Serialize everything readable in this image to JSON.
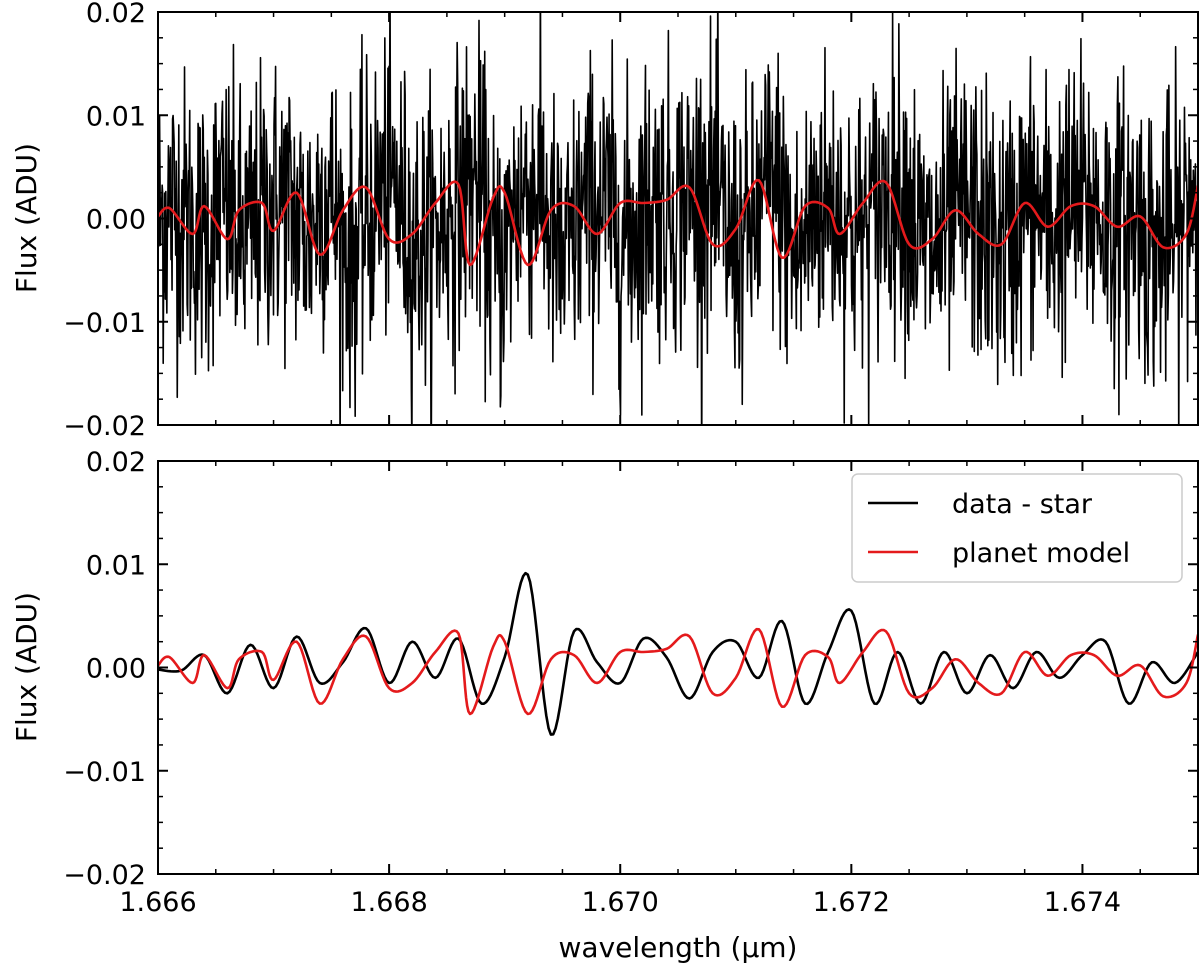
{
  "figure": {
    "xlabel": "wavelength (μm)",
    "background": "#ffffff"
  },
  "chart_data": [
    {
      "type": "line",
      "panel": "top",
      "xlabel": "",
      "ylabel": "Flux (ADU)",
      "xlim": [
        1.666,
        1.675
      ],
      "ylim": [
        -0.02,
        0.02
      ],
      "xticks": [
        1.666,
        1.668,
        1.67,
        1.672,
        1.674
      ],
      "yticks": [
        -0.02,
        -0.01,
        0.0,
        0.01,
        0.02
      ],
      "yticklabels": [
        "−0.02",
        "−0.01",
        "0.00",
        "0.01",
        "0.02"
      ],
      "xticks_labeled": false,
      "legend": null,
      "series": [
        {
          "color": "#000000",
          "description": "noisy data spectrum, approx. 2000 samples, scatter about 0 with std ~0.007 ADU",
          "noise_std": 0.007,
          "n_points": 2000
        },
        {
          "color": "#e41a1c",
          "x": [
            1.666,
            1.6661,
            1.6663,
            1.6664,
            1.6666,
            1.6667,
            1.6669,
            1.667,
            1.6672,
            1.6674,
            1.6676,
            1.6678,
            1.668,
            1.6682,
            1.6684,
            1.6686,
            1.6687,
            1.6689,
            1.669,
            1.6692,
            1.6694,
            1.6696,
            1.6698,
            1.67,
            1.6702,
            1.6704,
            1.6706,
            1.6708,
            1.671,
            1.6712,
            1.6714,
            1.6716,
            1.6718,
            1.6719,
            1.6721,
            1.6723,
            1.6725,
            1.6727,
            1.6729,
            1.6731,
            1.6733,
            1.6735,
            1.6737,
            1.6739,
            1.6741,
            1.6743,
            1.6745,
            1.6747,
            1.6749,
            1.675
          ],
          "y": [
            0.0002,
            0.001,
            -0.0015,
            0.0012,
            -0.002,
            0.0008,
            0.0015,
            -0.0012,
            0.0025,
            -0.0035,
            0.0008,
            0.003,
            -0.002,
            -0.0015,
            0.0015,
            0.0033,
            -0.0045,
            0.002,
            0.0025,
            -0.0045,
            0.0008,
            0.0012,
            -0.0015,
            0.0015,
            0.0015,
            0.0018,
            0.003,
            -0.0025,
            -0.001,
            0.0037,
            -0.0038,
            0.0012,
            0.001,
            -0.0015,
            0.0015,
            0.0035,
            -0.0025,
            -0.002,
            0.0008,
            -0.0015,
            -0.0025,
            0.0015,
            -0.0008,
            0.0012,
            0.0012,
            -0.0008,
            0.0002,
            -0.0028,
            -0.0015,
            0.0032
          ]
        }
      ]
    },
    {
      "type": "line",
      "panel": "bottom",
      "xlabel": "wavelength (μm)",
      "ylabel": "Flux (ADU)",
      "xlim": [
        1.666,
        1.675
      ],
      "ylim": [
        -0.02,
        0.02
      ],
      "xticks": [
        1.666,
        1.668,
        1.67,
        1.672,
        1.674
      ],
      "xticklabels": [
        "1.666",
        "1.668",
        "1.670",
        "1.672",
        "1.674"
      ],
      "yticks": [
        -0.02,
        -0.01,
        0.0,
        0.01,
        0.02
      ],
      "yticklabels": [
        "−0.02",
        "−0.01",
        "0.00",
        "0.01",
        "0.02"
      ],
      "legend": "top-right",
      "series": [
        {
          "name": "data - star",
          "color": "#000000",
          "x": [
            1.666,
            1.6662,
            1.6664,
            1.6666,
            1.6668,
            1.667,
            1.6672,
            1.6674,
            1.6676,
            1.6678,
            1.668,
            1.6682,
            1.6684,
            1.6686,
            1.6688,
            1.669,
            1.6692,
            1.6694,
            1.6696,
            1.6698,
            1.67,
            1.6702,
            1.6704,
            1.6706,
            1.6708,
            1.671,
            1.6712,
            1.6714,
            1.6716,
            1.6718,
            1.672,
            1.6722,
            1.6724,
            1.6726,
            1.6728,
            1.673,
            1.6732,
            1.6734,
            1.6736,
            1.6738,
            1.674,
            1.6742,
            1.6744,
            1.6746,
            1.6748,
            1.675
          ],
          "y": [
            -0.0002,
            -0.0003,
            0.0012,
            -0.0025,
            0.0022,
            -0.002,
            0.003,
            -0.0015,
            0.0005,
            0.0038,
            -0.0015,
            0.0025,
            -0.001,
            0.0028,
            -0.0035,
            0.001,
            0.009,
            -0.0065,
            0.0035,
            0.0005,
            -0.0015,
            0.0028,
            0.001,
            -0.003,
            0.0015,
            0.0025,
            -0.001,
            0.0045,
            -0.0035,
            0.0015,
            0.0055,
            -0.0035,
            0.0015,
            -0.0035,
            0.0015,
            -0.0025,
            0.0012,
            -0.002,
            0.0015,
            -0.001,
            0.0012,
            0.0025,
            -0.0035,
            0.0005,
            -0.0015,
            0.0015
          ]
        },
        {
          "name": "planet model",
          "color": "#e41a1c",
          "x": [
            1.666,
            1.6661,
            1.6663,
            1.6664,
            1.6666,
            1.6667,
            1.6669,
            1.667,
            1.6672,
            1.6674,
            1.6676,
            1.6678,
            1.668,
            1.6682,
            1.6684,
            1.6686,
            1.6687,
            1.6689,
            1.669,
            1.6692,
            1.6694,
            1.6696,
            1.6698,
            1.67,
            1.6702,
            1.6704,
            1.6706,
            1.6708,
            1.671,
            1.6712,
            1.6714,
            1.6716,
            1.6718,
            1.6719,
            1.6721,
            1.6723,
            1.6725,
            1.6727,
            1.6729,
            1.6731,
            1.6733,
            1.6735,
            1.6737,
            1.6739,
            1.6741,
            1.6743,
            1.6745,
            1.6747,
            1.6749,
            1.675
          ],
          "y": [
            0.0002,
            0.001,
            -0.0015,
            0.0012,
            -0.002,
            0.0008,
            0.0015,
            -0.0012,
            0.0025,
            -0.0035,
            0.0008,
            0.003,
            -0.002,
            -0.0015,
            0.0015,
            0.0033,
            -0.0045,
            0.002,
            0.0025,
            -0.0045,
            0.0008,
            0.0012,
            -0.0015,
            0.0015,
            0.0015,
            0.0018,
            0.003,
            -0.0025,
            -0.001,
            0.0037,
            -0.0038,
            0.0012,
            0.001,
            -0.0015,
            0.0015,
            0.0035,
            -0.0025,
            -0.002,
            0.0008,
            -0.0015,
            -0.0025,
            0.0015,
            -0.0008,
            0.0012,
            0.0012,
            -0.0008,
            0.0002,
            -0.0028,
            -0.0015,
            0.0032
          ]
        }
      ]
    }
  ]
}
